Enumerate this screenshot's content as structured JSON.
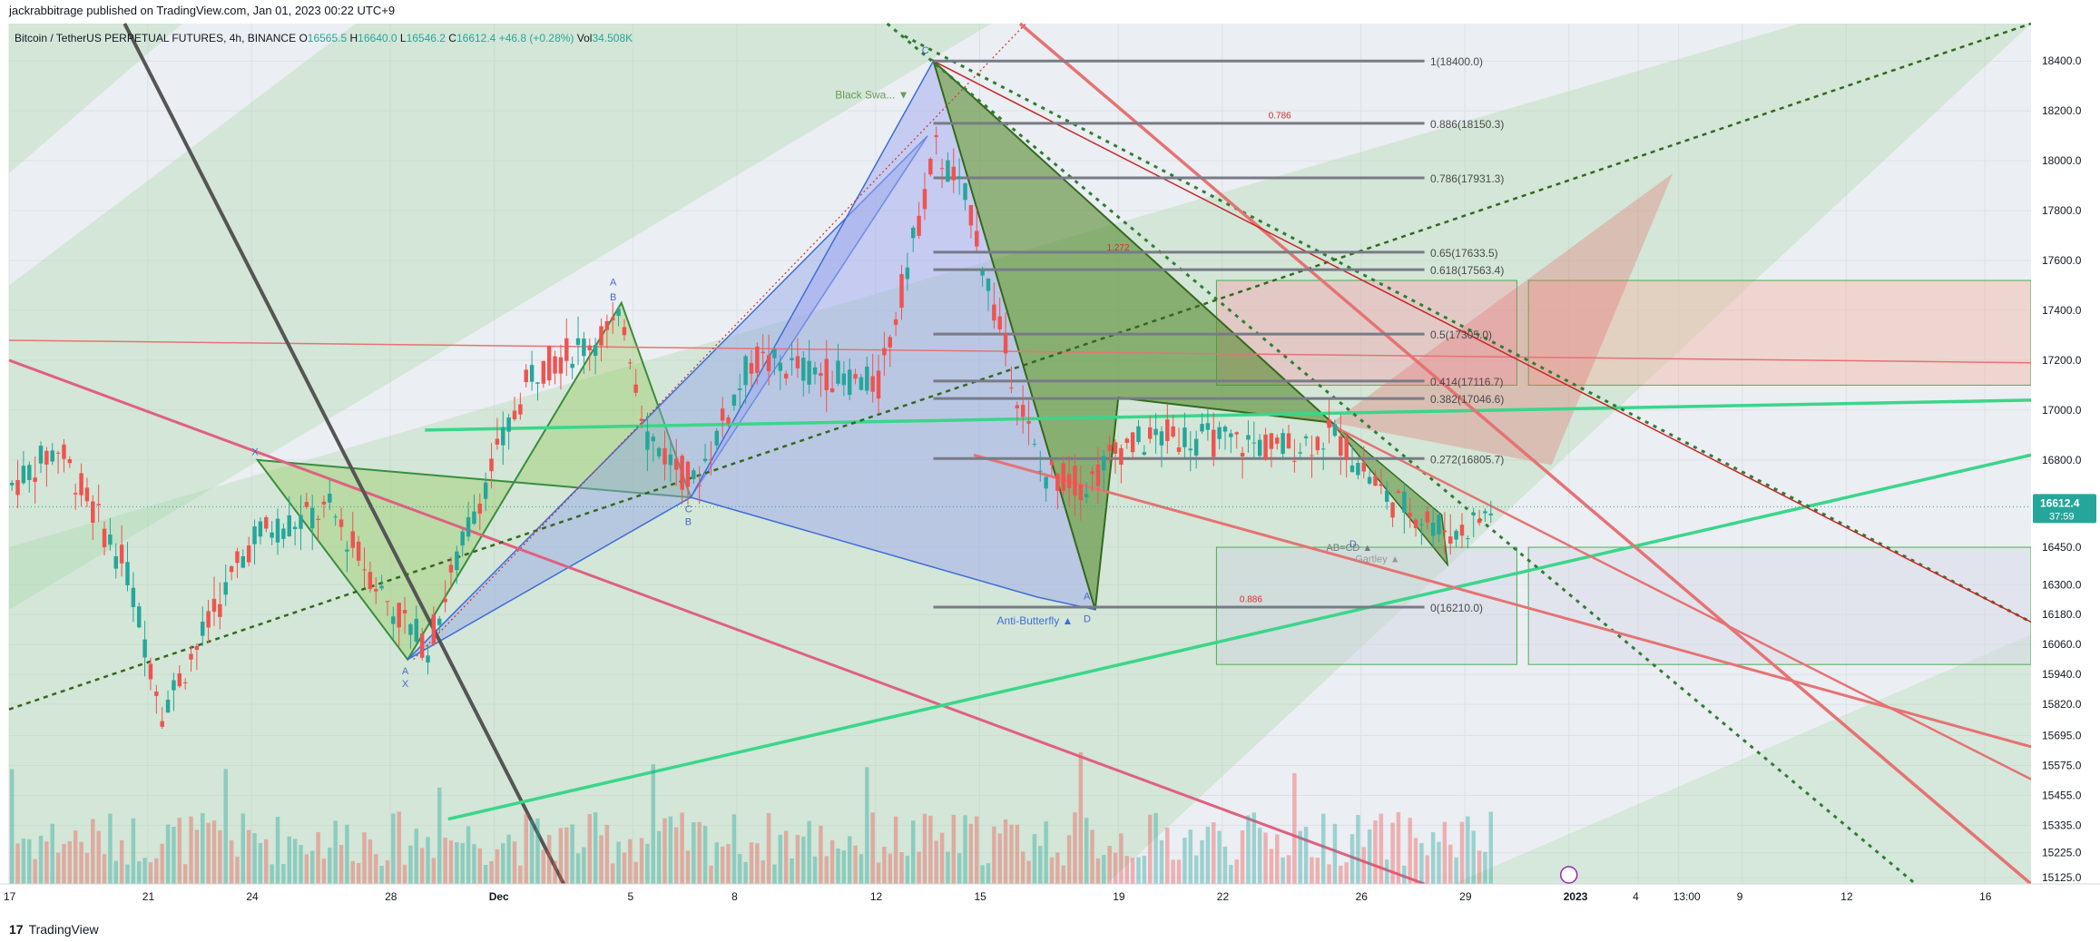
{
  "publish_line": "jackrabbitrage published on TradingView.com, Jan 01, 2023 00:22 UTC+9",
  "footer": {
    "logo_mark": "17",
    "brand": "TradingView"
  },
  "symbol_line": {
    "title": "Bitcoin / TetherUS PERPETUAL FUTURES, 4h, BINANCE",
    "open_label": "O",
    "open": "16565.5",
    "high_label": "H",
    "high": "16640.0",
    "low_label": "L",
    "low": "16546.2",
    "close_label": "C",
    "close": "16612.4",
    "change": "+46.8 (+0.28%)",
    "volume_label": "Vol",
    "volume": "34.508K"
  },
  "price_tag": {
    "price": "16612.4",
    "countdown": "37:59"
  },
  "fib_levels": [
    {
      "ratio": "1(18400.0)",
      "price": 18400.0
    },
    {
      "ratio": "0.886(18150.3)",
      "price": 18150.3
    },
    {
      "ratio": "0.786(17931.3)",
      "price": 17931.3
    },
    {
      "ratio": "0.65(17633.5)",
      "price": 17633.5
    },
    {
      "ratio": "0.618(17563.4)",
      "price": 17563.4
    },
    {
      "ratio": "0.5(17305.0)",
      "price": 17305.0
    },
    {
      "ratio": "0.414(17116.7)",
      "price": 17116.7
    },
    {
      "ratio": "0.382(17046.6)",
      "price": 17046.6
    },
    {
      "ratio": "0.272(16805.7)",
      "price": 16805.7
    },
    {
      "ratio": "0(16210.0)",
      "price": 16210.0
    }
  ],
  "pattern_labels": {
    "anti_butterfly": "Anti-Butterfly ▲",
    "black_swan": "Black Swa... ▼",
    "abcd": "AB=CD ▲",
    "gartley": "Gartley ▲",
    "letters": {
      "x": "X",
      "a": "A",
      "b": "B",
      "c": "C",
      "d": "D"
    },
    "ratio_0886": "0.886",
    "ratio_0786": "0.786",
    "ratio_1": "1.272"
  },
  "colors": {
    "up": "#26a69a",
    "down": "#ef5350",
    "fib_line": "#787b86",
    "green_channel": "#4caf50",
    "pink_line": "#e06080",
    "teal_line": "#3ad68a",
    "dark_line": "#555555",
    "price_tag_bg": "#26a69a"
  },
  "chart_data": {
    "type": "candlestick",
    "symbol": "Bitcoin / TetherUS PERPETUAL FUTURES, 4h, BINANCE",
    "ylim": [
      15100,
      18550
    ],
    "y_ticks": [
      18400.0,
      18200.0,
      18000.0,
      17800.0,
      17600.0,
      17400.0,
      17200.0,
      17000.0,
      16800.0,
      16612.4,
      16450.0,
      16300.0,
      16180.0,
      16060.0,
      15940.0,
      15820.0,
      15695.0,
      15575.0,
      15455.0,
      15335.0,
      15225.0,
      15125.0
    ],
    "y_tick_labels": [
      "18400.0",
      "18200.0",
      "18000.0",
      "17800.0",
      "17600.0",
      "17400.0",
      "17200.0",
      "17000.0",
      "16800.0",
      "16612.4",
      "16450.0",
      "16300.0",
      "16180.0",
      "16060.0",
      "15940.0",
      "15820.0",
      "15695.0",
      "15575.0",
      "15455.0",
      "15335.0",
      "15225.0",
      "15125.0"
    ],
    "x_tick_labels": [
      "17",
      "21",
      "24",
      "28",
      "Dec",
      "5",
      "8",
      "12",
      "15",
      "19",
      "22",
      "26",
      "29",
      "2023",
      "4",
      "13:00",
      "9",
      "12",
      "16"
    ],
    "x_tick_index": [
      0,
      24,
      42,
      66,
      84,
      108,
      126,
      150,
      168,
      192,
      210,
      234,
      252,
      270,
      282,
      289,
      300,
      318,
      342
    ],
    "last_close": 16612.4,
    "grid": true,
    "legend": "top-left"
  }
}
